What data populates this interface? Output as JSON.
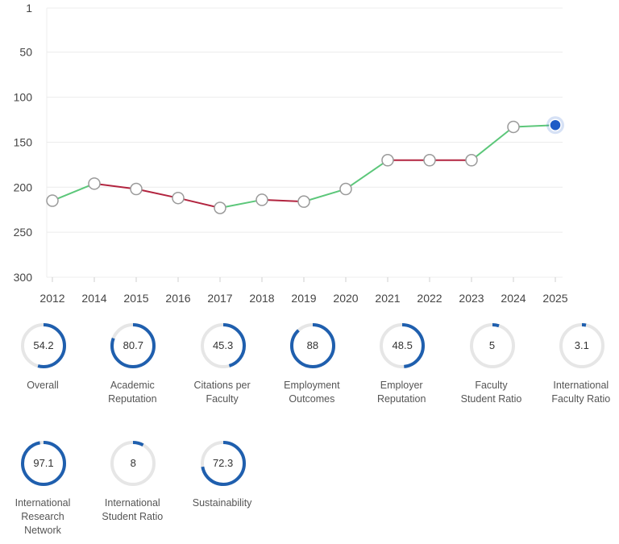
{
  "chart_data": {
    "type": "line",
    "y_inverted": true,
    "ylim": [
      1,
      300
    ],
    "yticks": [
      1,
      50,
      100,
      150,
      200,
      250,
      300
    ],
    "x": [
      "2012",
      "2014",
      "2015",
      "2016",
      "2017",
      "2018",
      "2019",
      "2020",
      "2021",
      "2022",
      "2023",
      "2024",
      "2025"
    ],
    "series": [
      {
        "values": [
          215,
          196,
          202,
          212,
          223,
          214,
          216,
          202,
          170,
          170,
          170,
          133,
          131
        ]
      }
    ],
    "segment_colors": {
      "rank_improved": "#5cc77a",
      "rank_declined_or_same": "#b2243f"
    },
    "highlight_point": "2025",
    "colors": {
      "highlight": "#1e5bc6",
      "grid": "#ececec",
      "axis_text": "#444444"
    },
    "grid": true
  },
  "metrics": [
    {
      "value": "54.2",
      "percent": 54.2,
      "label": [
        "Overall"
      ]
    },
    {
      "value": "80.7",
      "percent": 80.7,
      "label": [
        "Academic",
        "Reputation"
      ]
    },
    {
      "value": "45.3",
      "percent": 45.3,
      "label": [
        "Citations per",
        "Faculty"
      ]
    },
    {
      "value": "88",
      "percent": 88,
      "label": [
        "Employment",
        "Outcomes"
      ]
    },
    {
      "value": "48.5",
      "percent": 48.5,
      "label": [
        "Employer",
        "Reputation"
      ]
    },
    {
      "value": "5",
      "percent": 5,
      "label": [
        "Faculty",
        "Student Ratio"
      ]
    },
    {
      "value": "3.1",
      "percent": 3.1,
      "label": [
        "International",
        "Faculty Ratio"
      ]
    },
    {
      "value": "97.1",
      "percent": 97.1,
      "label": [
        "International",
        "Research",
        "Network"
      ]
    },
    {
      "value": "8",
      "percent": 8,
      "label": [
        "International",
        "Student Ratio"
      ]
    },
    {
      "value": "72.3",
      "percent": 72.3,
      "label": [
        "Sustainability"
      ]
    }
  ],
  "ring_colors": {
    "track": "#e6e6e6",
    "fill": "#1f5fae"
  }
}
